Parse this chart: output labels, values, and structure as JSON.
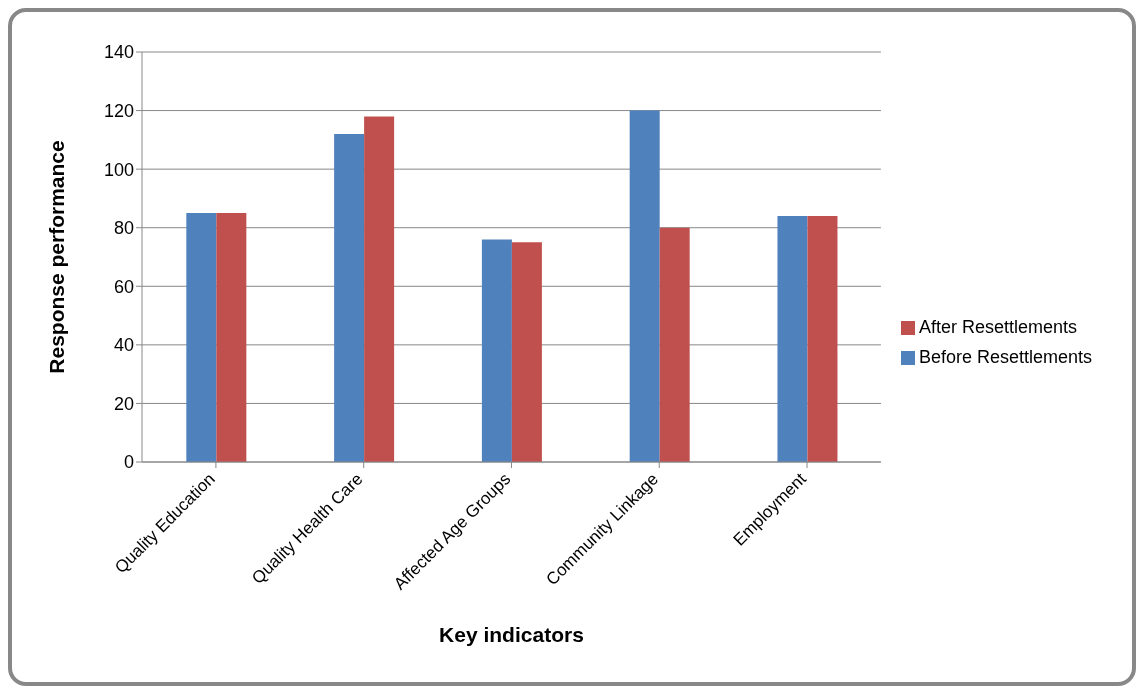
{
  "chart_data": {
    "type": "bar",
    "xlabel": "Key indicators",
    "ylabel": "Response performance",
    "categories": [
      "Quality Education",
      "Quality Health Care",
      "Affected Age Groups",
      "Community Linkage",
      "Employment"
    ],
    "series": [
      {
        "name": "Before Resettlements",
        "color": "#4f81bd",
        "values": [
          85,
          112,
          76,
          120,
          84
        ]
      },
      {
        "name": "After Resettlements",
        "color": "#c0504d",
        "values": [
          85,
          118,
          75,
          80,
          84
        ]
      }
    ],
    "ylim": [
      0,
      140
    ],
    "yticks": [
      0,
      20,
      40,
      60,
      80,
      100,
      120,
      140
    ],
    "grid": "y",
    "legend": "right"
  }
}
